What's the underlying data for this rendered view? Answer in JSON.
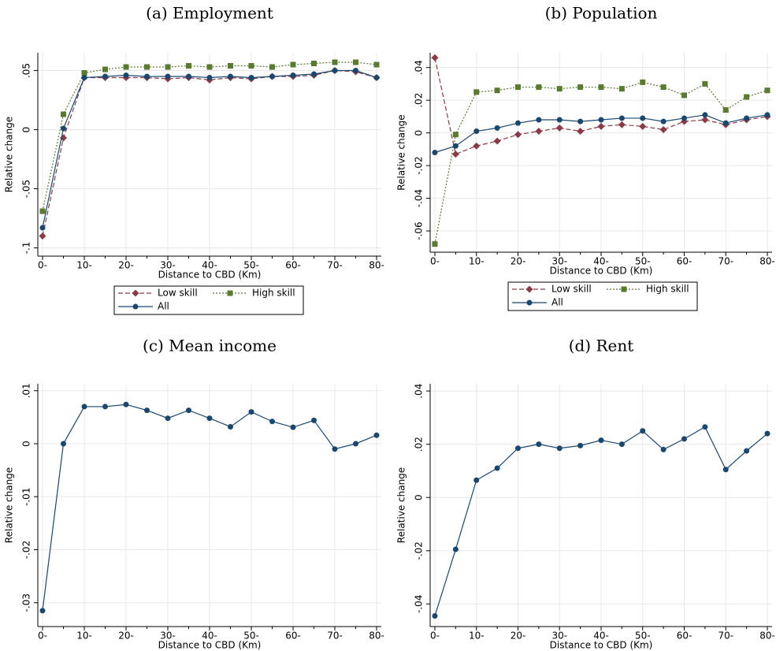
{
  "chart_data": [
    {
      "type": "line",
      "title": "(a) Employment",
      "y_label": "Relative change",
      "x_label": "Distance to CBD (Km)",
      "categories": [
        "0-",
        null,
        "10-",
        null,
        "20-",
        null,
        "30-",
        null,
        "40-",
        null,
        "50-",
        null,
        "60-",
        null,
        "70-",
        null,
        "80-"
      ],
      "series": [
        {
          "name": "Low skill",
          "color": "#8b3a47",
          "marker": "diamond",
          "linestyle": "dashed",
          "values": [
            -0.09,
            -0.007,
            0.044,
            0.044,
            0.044,
            0.044,
            0.043,
            0.044,
            0.042,
            0.044,
            0.043,
            0.045,
            0.045,
            0.046,
            0.05,
            0.049,
            0.044
          ]
        },
        {
          "name": "High skill",
          "color": "#5a7a2e",
          "marker": "square",
          "linestyle": "dotted",
          "values": [
            -0.069,
            0.013,
            0.048,
            0.051,
            0.053,
            0.053,
            0.053,
            0.054,
            0.053,
            0.054,
            0.054,
            0.053,
            0.055,
            0.056,
            0.057,
            0.057,
            0.055
          ]
        },
        {
          "name": "All",
          "color": "#1a476f",
          "marker": "circle",
          "linestyle": "solid",
          "values": [
            -0.083,
            0.001,
            0.044,
            0.045,
            0.046,
            0.045,
            0.045,
            0.045,
            0.044,
            0.045,
            0.044,
            0.045,
            0.046,
            0.047,
            0.05,
            0.05,
            0.044
          ]
        }
      ],
      "ylim": [
        -0.107,
        0.065
      ],
      "yticks": [
        {
          "value": -0.1,
          "label": "-.1"
        },
        {
          "value": -0.05,
          "label": "-.05"
        },
        0,
        {
          "value": 0.05,
          "label": ".05"
        }
      ],
      "grid": true,
      "legend": "bottom"
    },
    {
      "type": "line",
      "title": "(b) Population",
      "y_label": "Relative change",
      "x_label": "Distance to CBD (Km)",
      "categories": [
        "0-",
        null,
        "10-",
        null,
        "20-",
        null,
        "30-",
        null,
        "40-",
        null,
        "50-",
        null,
        "60-",
        null,
        "70-",
        null,
        "80-"
      ],
      "series": [
        {
          "name": "Low skill",
          "color": "#8b3a47",
          "marker": "diamond",
          "linestyle": "dashed",
          "values": [
            0.046,
            -0.013,
            -0.008,
            -0.005,
            -0.001,
            0.001,
            0.003,
            0.001,
            0.004,
            0.005,
            0.004,
            0.002,
            0.007,
            0.008,
            0.005,
            0.008,
            0.01
          ]
        },
        {
          "name": "High skill",
          "color": "#5a7a2e",
          "marker": "square",
          "linestyle": "dotted",
          "values": [
            -0.068,
            -0.001,
            0.025,
            0.026,
            0.028,
            0.028,
            0.027,
            0.028,
            0.028,
            0.027,
            0.031,
            0.028,
            0.023,
            0.03,
            0.014,
            0.022,
            0.026
          ]
        },
        {
          "name": "All",
          "color": "#1a476f",
          "marker": "circle",
          "linestyle": "solid",
          "values": [
            -0.012,
            -0.008,
            0.001,
            0.003,
            0.006,
            0.008,
            0.008,
            0.007,
            0.008,
            0.009,
            0.009,
            0.007,
            0.009,
            0.011,
            0.006,
            0.009,
            0.011
          ]
        }
      ],
      "ylim": [
        -0.073,
        0.049
      ],
      "yticks": [
        {
          "value": -0.06,
          "label": "-.06"
        },
        {
          "value": -0.04,
          "label": "-.04"
        },
        {
          "value": -0.02,
          "label": "-.02"
        },
        0,
        {
          "value": 0.02,
          "label": ".02"
        },
        {
          "value": 0.04,
          "label": ".04"
        }
      ],
      "grid": true,
      "legend": "bottom"
    },
    {
      "type": "line",
      "title": "(c) Mean income",
      "y_label": "Relative change",
      "x_label": "Distance to CBD (Km)",
      "categories": [
        "0-",
        null,
        "10-",
        null,
        "20-",
        null,
        "30-",
        null,
        "40-",
        null,
        "50-",
        null,
        "60-",
        null,
        "70-",
        null,
        "80-"
      ],
      "series": [
        {
          "color": "#1a476f",
          "marker": "circle",
          "linestyle": "solid",
          "values": [
            -0.0315,
            0,
            0.007,
            0.007,
            0.0074,
            0.0063,
            0.0048,
            0.0063,
            0.0048,
            0.0032,
            0.006,
            0.0042,
            0.0031,
            0.0044,
            -0.001,
            0,
            0.0016
          ]
        }
      ],
      "ylim": [
        -0.0345,
        0.0113
      ],
      "yticks": [
        {
          "value": -0.03,
          "label": "-.03"
        },
        {
          "value": -0.02,
          "label": "-.02"
        },
        {
          "value": -0.01,
          "label": "-.01"
        },
        0,
        {
          "value": 0.01,
          "label": ".01"
        }
      ],
      "grid": true
    },
    {
      "type": "line",
      "title": "(d) Rent",
      "y_label": "Relative change",
      "x_label": "Distance to CBD (Km)",
      "categories": [
        "0-",
        null,
        "10-",
        null,
        "20-",
        null,
        "30-",
        null,
        "40-",
        null,
        "50-",
        null,
        "60-",
        null,
        "70-",
        null,
        "80-"
      ],
      "series": [
        {
          "color": "#1a476f",
          "marker": "circle",
          "linestyle": "solid",
          "values": [
            -0.0445,
            -0.0195,
            0.0065,
            0.011,
            0.0185,
            0.02,
            0.0185,
            0.0195,
            0.0215,
            0.02,
            0.025,
            0.018,
            0.022,
            0.0265,
            0.0105,
            0.0175,
            0.024
          ]
        }
      ],
      "ylim": [
        -0.0485,
        0.0427
      ],
      "yticks": [
        {
          "value": -0.04,
          "label": "-.04"
        },
        {
          "value": -0.02,
          "label": "-.02"
        },
        0,
        {
          "value": 0.02,
          "label": ".02"
        },
        {
          "value": 0.04,
          "label": ".04"
        }
      ],
      "grid": true
    }
  ]
}
